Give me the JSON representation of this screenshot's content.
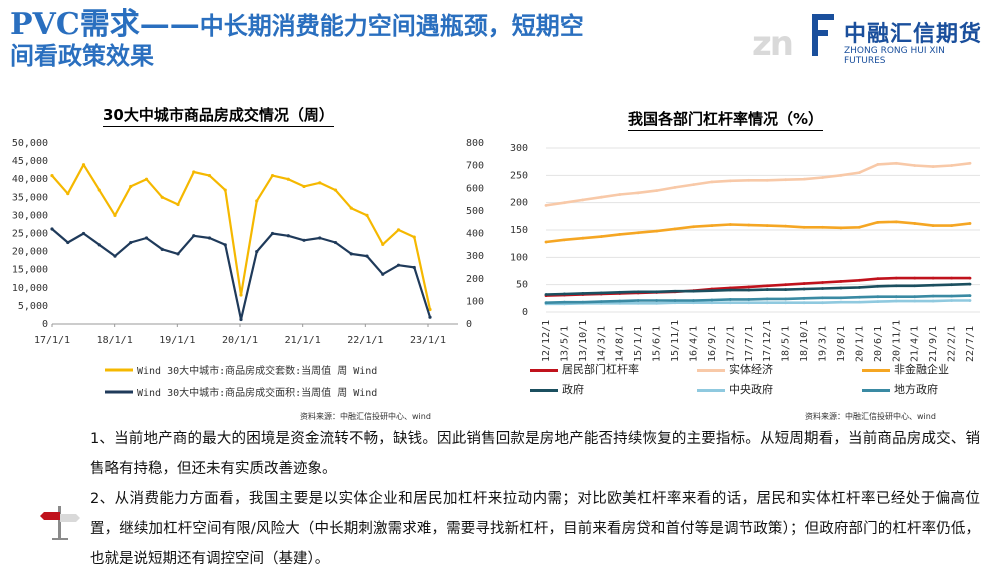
{
  "slide": {
    "title_part1": "PVC需求——",
    "title_part2": "中长期消费能力空间遇瓶颈，短期空",
    "title_part3": "间看政策效果"
  },
  "logo": {
    "mark": "zn",
    "company_cn": "中融汇信期货",
    "company_en": "ZHONG RONG HUI XIN FUTURES"
  },
  "charts": {
    "left": {
      "title": "30大中城市商品房成交情况（周）",
      "source": "资料来源：中融汇信投研中心、wind"
    },
    "right": {
      "title": "我国各部门杠杆率情况（%）",
      "source": "资料来源：中融汇信投研中心、wind"
    }
  },
  "chart_data": [
    {
      "type": "line",
      "title": "30大中城市商品房成交情况（周）",
      "x_tick_labels": [
        "17/1/1",
        "18/1/1",
        "19/1/1",
        "20/1/1",
        "21/1/1",
        "22/1/1",
        "23/1/1"
      ],
      "y_left_ticks": [
        "0",
        "5,000",
        "10,000",
        "15,000",
        "20,000",
        "25,000",
        "30,000",
        "35,000",
        "40,000",
        "45,000",
        "50,000"
      ],
      "y_right_ticks": [
        "0",
        "100",
        "200",
        "300",
        "400",
        "500",
        "600",
        "700",
        "800"
      ],
      "ylim_left": [
        0,
        50000
      ],
      "ylim_right": [
        0,
        800
      ],
      "grid": false,
      "legend_position": "bottom",
      "series": [
        {
          "name": "Wind 30大中城市:商品房成交套数:当周值 周 Wind",
          "axis": "left",
          "color": "#f5b800",
          "x": [
            "17/1/1",
            "17/4/1",
            "17/7/1",
            "17/10/1",
            "18/1/1",
            "18/4/1",
            "18/7/1",
            "18/10/1",
            "19/1/1",
            "19/4/1",
            "19/7/1",
            "19/10/1",
            "20/1/1",
            "20/4/1",
            "20/7/1",
            "20/10/1",
            "21/1/1",
            "21/4/1",
            "21/7/1",
            "21/10/1",
            "22/1/1",
            "22/4/1",
            "22/7/1",
            "22/10/1",
            "23/1/1"
          ],
          "values": [
            41000,
            36000,
            44000,
            37000,
            30000,
            38000,
            40000,
            35000,
            33000,
            42000,
            41000,
            37000,
            8000,
            34000,
            41000,
            40000,
            38000,
            39000,
            37000,
            32000,
            30000,
            22000,
            26000,
            24000,
            4000
          ]
        },
        {
          "name": "Wind 30大中城市:商品房成交面积:当周值 周 Wind",
          "axis": "right",
          "color": "#1f3a5a",
          "x": [
            "17/1/1",
            "17/4/1",
            "17/7/1",
            "17/10/1",
            "18/1/1",
            "18/4/1",
            "18/7/1",
            "18/10/1",
            "19/1/1",
            "19/4/1",
            "19/7/1",
            "19/10/1",
            "20/1/1",
            "20/4/1",
            "20/7/1",
            "20/10/1",
            "21/1/1",
            "21/4/1",
            "21/7/1",
            "21/10/1",
            "22/1/1",
            "22/4/1",
            "22/7/1",
            "22/10/1",
            "23/1/1"
          ],
          "values": [
            420,
            360,
            400,
            350,
            300,
            360,
            380,
            330,
            310,
            390,
            380,
            350,
            20,
            320,
            400,
            390,
            370,
            380,
            360,
            310,
            300,
            220,
            260,
            250,
            30
          ]
        }
      ]
    },
    {
      "type": "line",
      "title": "我国各部门杠杆率情况（%）",
      "categories": [
        "12/12/1",
        "13/5/1",
        "13/10/1",
        "14/3/1",
        "14/8/1",
        "15/1/1",
        "15/6/1",
        "15/11/1",
        "16/4/1",
        "16/9/1",
        "17/2/1",
        "17/7/1",
        "17/12/1",
        "18/5/1",
        "18/10/1",
        "19/3/1",
        "19/8/1",
        "20/1/1",
        "20/6/1",
        "20/11/1",
        "21/4/1",
        "21/9/1",
        "22/2/1",
        "22/7/1"
      ],
      "ylim": [
        0,
        300
      ],
      "y_ticks": [
        "0",
        "50",
        "100",
        "150",
        "200",
        "250",
        "300"
      ],
      "grid": true,
      "legend_position": "bottom",
      "series": [
        {
          "name": "居民部门杠杆率",
          "color": "#c0121c",
          "values": [
            30,
            31,
            32,
            33,
            34,
            35,
            36,
            37,
            39,
            42,
            44,
            46,
            48,
            50,
            52,
            54,
            56,
            58,
            61,
            62,
            62,
            62,
            62,
            62
          ]
        },
        {
          "name": "实体经济",
          "color": "#f8c9a8",
          "values": [
            195,
            200,
            205,
            210,
            215,
            218,
            222,
            228,
            233,
            238,
            240,
            241,
            241,
            242,
            243,
            246,
            250,
            255,
            270,
            272,
            268,
            266,
            268,
            272
          ]
        },
        {
          "name": "非金融企业",
          "color": "#f5a623",
          "values": [
            128,
            132,
            135,
            138,
            142,
            145,
            148,
            152,
            156,
            158,
            160,
            159,
            158,
            157,
            155,
            155,
            154,
            155,
            164,
            165,
            162,
            158,
            158,
            162
          ]
        },
        {
          "name": "政府",
          "color": "#1b4f5f",
          "values": [
            32,
            33,
            34,
            35,
            36,
            37,
            37,
            38,
            38,
            39,
            40,
            40,
            41,
            41,
            42,
            43,
            44,
            45,
            47,
            48,
            48,
            49,
            50,
            51
          ]
        },
        {
          "name": "中央政府",
          "color": "#8fc9df",
          "values": [
            15,
            15,
            16,
            16,
            16,
            16,
            16,
            17,
            17,
            17,
            17,
            17,
            17,
            17,
            17,
            17,
            18,
            18,
            19,
            20,
            20,
            20,
            21,
            21
          ]
        },
        {
          "name": "地方政府",
          "color": "#3a8aa3",
          "values": [
            17,
            18,
            18,
            19,
            20,
            21,
            21,
            21,
            21,
            22,
            23,
            23,
            24,
            24,
            25,
            26,
            26,
            27,
            28,
            28,
            28,
            29,
            29,
            30
          ]
        }
      ]
    }
  ],
  "body": {
    "p1": "1、当前地产商的最大的困境是资金流转不畅，缺钱。因此销售回款是房地产能否持续恢复的主要指标。从短周期看，当前商品房成交、销售略有持稳，但还未有实质改善迹象。",
    "p2": "2、从消费能力方面看，我国主要是以实体企业和居民加杠杆来拉动内需；对比欧美杠杆率来看的话，居民和实体杠杆率已经处于偏高位置，继续加杠杆空间有限/风险大（中长期刺激需求难，需要寻找新杠杆，目前来看房贷和首付等是调节政策）；但政府部门的杠杆率仍低，也就是说短期还有调控空间（基建）。"
  }
}
